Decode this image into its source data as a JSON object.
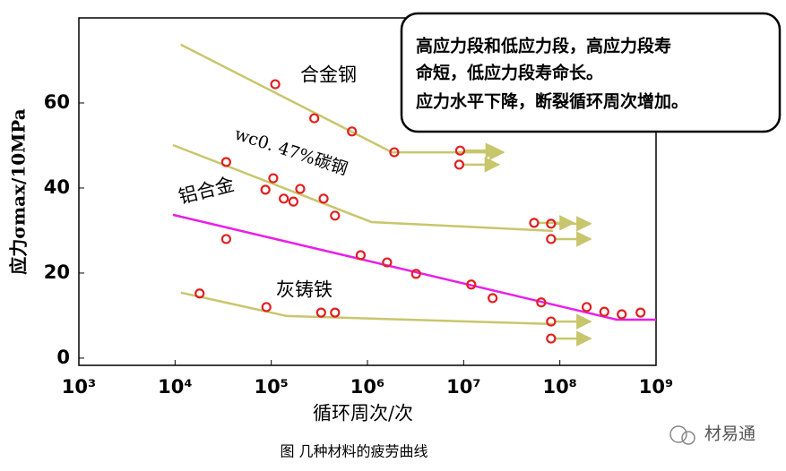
{
  "chart_data": {
    "type": "scatter",
    "xlabel": "循环周次/次",
    "ylabel": "应力σmax/10MPa",
    "caption": "图  几种材料的疲劳曲线",
    "watermark": "材易通",
    "annotation": [
      "高应力段和低应力段，高应力段寿",
      "命短，低应力段寿命长。",
      "应力水平下降，断裂循环周次增加。"
    ],
    "xscale": "log",
    "xlim": [
      1000,
      1000000000
    ],
    "xticks": [
      {
        "value": 1000,
        "label": "10³"
      },
      {
        "value": 10000,
        "label": "10⁴"
      },
      {
        "value": 100000,
        "label": "10⁵"
      },
      {
        "value": 1000000,
        "label": "10⁶"
      },
      {
        "value": 10000000,
        "label": "10⁷"
      },
      {
        "value": 100000000,
        "label": "10⁸"
      },
      {
        "value": 1000000000,
        "label": "10⁹"
      }
    ],
    "ylim": [
      -1.7,
      80
    ],
    "yticks": [
      0,
      20,
      40,
      60
    ],
    "marker_color": "#e02020",
    "series": [
      {
        "name": "合金钢",
        "color": "#c8c66c",
        "line_x": [
          11500,
          1800000,
          26000000
        ],
        "line_y": [
          73.7,
          48.4,
          48.4
        ],
        "line_arrow": true,
        "x": [
          110000,
          280000,
          690000,
          1900000
        ],
        "y": [
          64.4,
          56.4,
          53.3,
          48.4
        ],
        "runout_x": [
          9200000,
          9000000
        ],
        "runout_y": [
          48.8,
          45.5
        ]
      },
      {
        "name": "wc0. 47%碳钢",
        "color": "#c8c66c",
        "line_x": [
          9500,
          1100000,
          85000000
        ],
        "line_y": [
          50.1,
          32.0,
          29.9
        ],
        "line_arrow": false,
        "x": [
          34000,
          105000,
          87000,
          135000,
          170000,
          200000,
          350000,
          460000
        ],
        "y": [
          46.1,
          42.3,
          39.6,
          37.5,
          36.8,
          39.8,
          37.5,
          33.5
        ],
        "runout_x": [
          54000000,
          81000000,
          81000000
        ],
        "runout_y": [
          31.8,
          31.6,
          28.0
        ]
      },
      {
        "name": "铝合金",
        "color": "#e81ee8",
        "line_x": [
          9500,
          390000000,
          1000000000
        ],
        "line_y": [
          33.7,
          9.05,
          9.05
        ],
        "line_arrow": false,
        "x": [
          34000,
          850000,
          1600000,
          3200000,
          12000000,
          20000000,
          64000000,
          190000000,
          290000000,
          440000000,
          690000000
        ],
        "y": [
          28.0,
          24.2,
          22.5,
          19.8,
          17.3,
          14.1,
          13.1,
          12.0,
          10.9,
          10.3,
          10.7
        ],
        "runout_x": [],
        "runout_y": []
      },
      {
        "name": "灰铸铁",
        "color": "#c8c66c",
        "line_x": [
          11500,
          145000,
          85000000
        ],
        "line_y": [
          15.4,
          9.9,
          8.0
        ],
        "line_arrow": false,
        "x": [
          18000,
          89000,
          330000,
          460000
        ],
        "y": [
          15.2,
          12.0,
          10.7,
          10.7
        ],
        "runout_x": [
          81000000,
          81000000
        ],
        "runout_y": [
          8.6,
          4.6
        ]
      }
    ]
  }
}
